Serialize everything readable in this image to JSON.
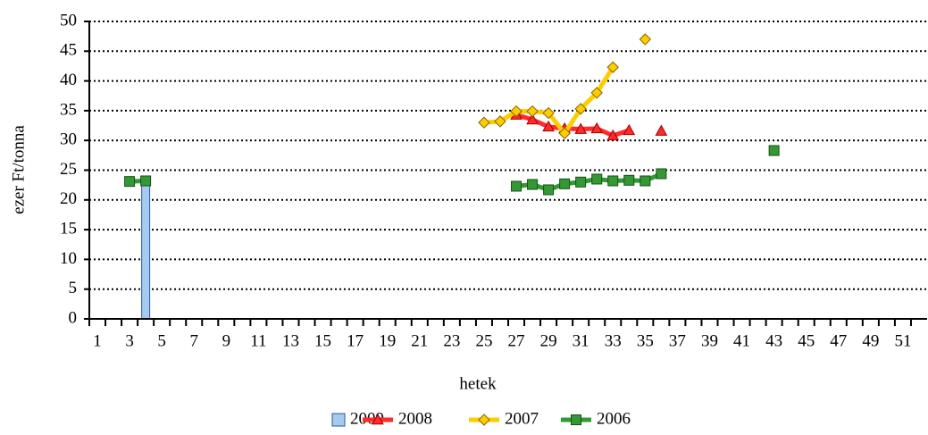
{
  "chart_data": {
    "type": "line",
    "x_label": "hetek",
    "y_label": "ezer Ft/tonna",
    "categories": [
      1,
      null,
      3,
      null,
      5,
      null,
      7,
      null,
      9,
      null,
      11,
      null,
      13,
      null,
      15,
      null,
      17,
      null,
      19,
      null,
      21,
      null,
      23,
      null,
      25,
      null,
      27,
      null,
      29,
      null,
      31,
      null,
      33,
      null,
      35,
      null,
      37,
      null,
      39,
      null,
      41,
      null,
      43,
      null,
      45,
      null,
      47,
      null,
      49,
      null,
      51,
      null
    ],
    "ylim": [
      0,
      50
    ],
    "yticks": [
      0,
      5,
      10,
      15,
      20,
      25,
      30,
      35,
      40,
      45,
      50
    ],
    "grid": true,
    "legend": "bottom",
    "series": [
      {
        "name": "2009",
        "type": "bar",
        "color": "#a6cbf0",
        "edge": "#2f5597",
        "values": [
          null,
          null,
          null,
          23,
          null,
          null,
          null,
          null,
          null,
          null,
          null,
          null,
          null,
          null,
          null,
          null,
          null,
          null,
          null,
          null,
          null,
          null,
          null,
          null,
          null,
          null,
          null,
          null,
          null,
          null,
          null,
          null,
          null,
          null,
          null,
          null,
          null,
          null,
          null,
          null,
          null,
          null,
          null,
          null,
          null,
          null,
          null,
          null,
          null,
          null,
          null,
          null
        ]
      },
      {
        "name": "2008",
        "type": "line",
        "marker": "triangle",
        "color": "#ff2a2a",
        "edge": "#a00000",
        "values": [
          null,
          null,
          null,
          null,
          null,
          null,
          null,
          null,
          null,
          null,
          null,
          null,
          null,
          null,
          null,
          null,
          null,
          null,
          null,
          null,
          null,
          null,
          null,
          null,
          null,
          null,
          34.3,
          33.5,
          32.3,
          32,
          31.9,
          32,
          30.8,
          31.7,
          null,
          31.6,
          null,
          null,
          null,
          null,
          null,
          null,
          null,
          null,
          null,
          null,
          null,
          null,
          null,
          null,
          null,
          null
        ]
      },
      {
        "name": "2007",
        "type": "line",
        "marker": "diamond",
        "color": "#ffcc00",
        "edge": "#806600",
        "values": [
          null,
          null,
          null,
          null,
          null,
          null,
          null,
          null,
          null,
          null,
          null,
          null,
          null,
          null,
          null,
          null,
          null,
          null,
          null,
          null,
          null,
          null,
          null,
          null,
          33,
          33.2,
          34.9,
          34.9,
          34.6,
          31.2,
          35.3,
          38,
          42.3,
          null,
          47,
          null,
          null,
          null,
          null,
          null,
          null,
          null,
          null,
          null,
          null,
          null,
          null,
          null,
          null,
          null,
          null,
          null
        ]
      },
      {
        "name": "2006",
        "type": "line",
        "marker": "square",
        "color": "#339933",
        "edge": "#1a4d1a",
        "values": [
          null,
          null,
          23.1,
          23.2,
          null,
          null,
          null,
          null,
          null,
          null,
          null,
          null,
          null,
          null,
          null,
          null,
          null,
          null,
          null,
          null,
          null,
          null,
          null,
          null,
          null,
          null,
          22.3,
          22.6,
          21.7,
          22.7,
          23,
          23.5,
          23.2,
          23.3,
          23.2,
          24.4,
          null,
          null,
          null,
          null,
          null,
          null,
          28.3,
          null,
          null,
          null,
          null,
          null,
          null,
          null,
          null,
          null
        ]
      }
    ]
  }
}
